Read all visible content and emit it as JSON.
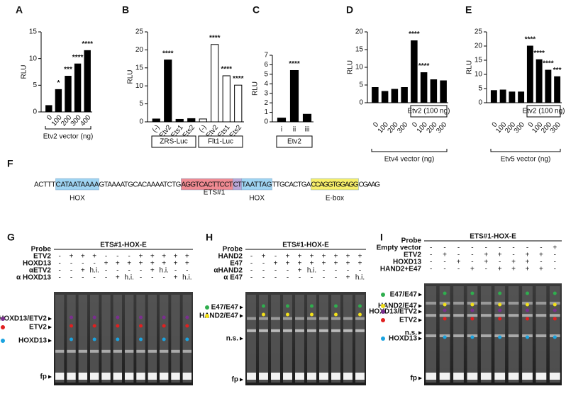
{
  "chart_data": [
    {
      "type": "bar",
      "panel": "A",
      "ylabel": "RLU",
      "categories": [
        "0",
        "100",
        "200",
        "300",
        "400"
      ],
      "values": [
        1.2,
        4.2,
        6.7,
        9.0,
        11.5
      ],
      "colors": [
        "#000000",
        "#000000",
        "#000000",
        "#000000",
        "#000000"
      ],
      "ylim": [
        0,
        15
      ],
      "yticks": [
        0,
        5,
        10,
        15
      ],
      "significance": [
        null,
        "*",
        "***",
        "****",
        "****"
      ],
      "group_labels": [
        "Etv2 vector (ng)"
      ]
    },
    {
      "type": "bar",
      "panel": "B",
      "ylabel": "RLU",
      "categories": [
        "(-)",
        "Etv2",
        "Ets1",
        "Ets2",
        "(-)",
        "Etv2",
        "Ets1",
        "Ets2"
      ],
      "values": [
        0.8,
        17.2,
        0.7,
        0.9,
        0.8,
        21.5,
        12.8,
        10.2
      ],
      "colors": [
        "#000000",
        "#000000",
        "#000000",
        "#000000",
        "#ffffff",
        "#ffffff",
        "#ffffff",
        "#ffffff"
      ],
      "ylim": [
        0,
        25
      ],
      "yticks": [
        0,
        5,
        10,
        15,
        20,
        25
      ],
      "significance": [
        null,
        "****",
        null,
        null,
        null,
        "****",
        "****",
        "****"
      ],
      "group_labels": [
        "ZRS-Luc",
        "Flt1-Luc"
      ]
    },
    {
      "type": "bar",
      "panel": "C",
      "ylabel": "RLU",
      "categories": [
        "i",
        "ii",
        "iii"
      ],
      "values": [
        0.4,
        5.4,
        0.8
      ],
      "colors": [
        "#000000",
        "#000000",
        "#000000"
      ],
      "ylim": [
        0,
        7
      ],
      "yticks": [
        0,
        1,
        2,
        3,
        4,
        5,
        6,
        7
      ],
      "significance": [
        null,
        "****",
        null
      ],
      "group_labels": [
        "Etv2"
      ]
    },
    {
      "type": "bar",
      "panel": "D",
      "ylabel": "RLU",
      "categories": [
        "0",
        "100",
        "200",
        "300",
        "0",
        "100",
        "200",
        "300"
      ],
      "values": [
        4.3,
        3.2,
        3.8,
        4.3,
        17.5,
        8.5,
        6.5,
        6.2
      ],
      "colors": [
        "#000000",
        "#000000",
        "#000000",
        "#000000",
        "#000000",
        "#000000",
        "#000000",
        "#000000"
      ],
      "ylim": [
        0,
        20
      ],
      "yticks": [
        0,
        5,
        10,
        15,
        20
      ],
      "significance": [
        null,
        null,
        null,
        null,
        "****",
        "****",
        null,
        null
      ],
      "group_labels": [
        "Etv2 (100 ng)",
        "Etv4 vector (ng)"
      ]
    },
    {
      "type": "bar",
      "panel": "E",
      "ylabel": "RLU",
      "categories": [
        "0",
        "100",
        "200",
        "300",
        "0",
        "100",
        "200",
        "300"
      ],
      "values": [
        4.3,
        4.5,
        3.8,
        3.8,
        20.0,
        15.2,
        11.5,
        9.2
      ],
      "colors": [
        "#000000",
        "#000000",
        "#000000",
        "#000000",
        "#000000",
        "#000000",
        "#000000",
        "#000000"
      ],
      "ylim": [
        0,
        25
      ],
      "yticks": [
        0,
        5,
        10,
        15,
        20,
        25
      ],
      "significance": [
        null,
        null,
        null,
        null,
        "****",
        "****",
        "****",
        "***"
      ],
      "group_labels": [
        "Etv2 (100 ng)",
        "Etv5 vector (ng)"
      ]
    }
  ],
  "sequence": {
    "panel": "F",
    "segments": [
      "ACTTT",
      "CATAATAAAA",
      "GTAAAATGCACAAAATCTG",
      "AGGTCACTTCCT",
      "CT",
      "TAATTAG",
      "TTGCACTGA",
      "CCAGGTGGAGG",
      "CGAAG"
    ],
    "labels": [
      "HOX",
      "ETS#1",
      "HOX",
      "E-box"
    ]
  },
  "gels": [
    {
      "panel": "G",
      "title": "ETS#1-HOX-E",
      "probe": "Probe",
      "rows": [
        {
          "name": "ETV2",
          "symbols": [
            "-",
            "+",
            "+",
            "+",
            "-",
            "-",
            "-",
            "+",
            "+",
            "+",
            "+",
            "+"
          ]
        },
        {
          "name": "HOXD13",
          "symbols": [
            "-",
            "-",
            "-",
            "-",
            "+",
            "+",
            "+",
            "+",
            "+",
            "+",
            "+",
            "+"
          ]
        },
        {
          "name": "αETV2",
          "symbols": [
            "-",
            "-",
            "+",
            "h.i.",
            "-",
            "-",
            "-",
            "-",
            "+",
            "h.i.",
            "-",
            "-"
          ]
        },
        {
          "name": "α HOXD13",
          "symbols": [
            "-",
            "-",
            "-",
            "-",
            "-",
            "+",
            "h.i.",
            "-",
            "-",
            "-",
            "+",
            "h.i."
          ]
        }
      ],
      "bands": [
        "HOXD13/ETV2",
        "ETV2",
        "HOXD13",
        "fp"
      ]
    },
    {
      "panel": "H",
      "title": "ETS#1-HOX-E",
      "probe": "Probe",
      "rows": [
        {
          "name": "HAND2",
          "symbols": [
            "-",
            "+",
            "-",
            "+",
            "+",
            "+",
            "+",
            "+",
            "+",
            "+"
          ]
        },
        {
          "name": "E47",
          "symbols": [
            "-",
            "-",
            "+",
            "+",
            "+",
            "+",
            "+",
            "+",
            "+",
            "+"
          ]
        },
        {
          "name": "αHAND2",
          "symbols": [
            "-",
            "-",
            "-",
            "-",
            "+",
            "h.i.",
            "-",
            "-",
            "-",
            "-"
          ]
        },
        {
          "name": "α  E47",
          "symbols": [
            "-",
            "-",
            "-",
            "-",
            "-",
            "-",
            "-",
            "-",
            "+",
            "h.i."
          ]
        }
      ],
      "bands": [
        "E47/E47",
        "HAND2/E47",
        "n.s.",
        "fp"
      ]
    },
    {
      "panel": "I",
      "title": "ETS#1-HOX-E",
      "probe": "Probe",
      "rows": [
        {
          "name": "Empty vector",
          "symbols": [
            "-",
            "-",
            "-",
            "-",
            "-",
            "-",
            "-",
            "-",
            "-",
            "+"
          ]
        },
        {
          "name": "ETV2",
          "symbols": [
            "-",
            "+",
            "-",
            "-",
            "+",
            "+",
            "-",
            "+",
            "+",
            "-"
          ]
        },
        {
          "name": "HOXD13",
          "symbols": [
            "-",
            "-",
            "+",
            "-",
            "+",
            "-",
            "+",
            "+",
            "-",
            "-"
          ]
        },
        {
          "name": "HAND2+E47",
          "symbols": [
            "-",
            "-",
            "-",
            "+",
            "-",
            "+",
            "+",
            "+",
            "+",
            "-"
          ]
        }
      ],
      "bands": [
        "E47/E47",
        "HAND2/E47",
        "HOXD13/ETV2",
        "ETV2",
        "n.s.",
        "HOXD13",
        "fp"
      ]
    }
  ]
}
